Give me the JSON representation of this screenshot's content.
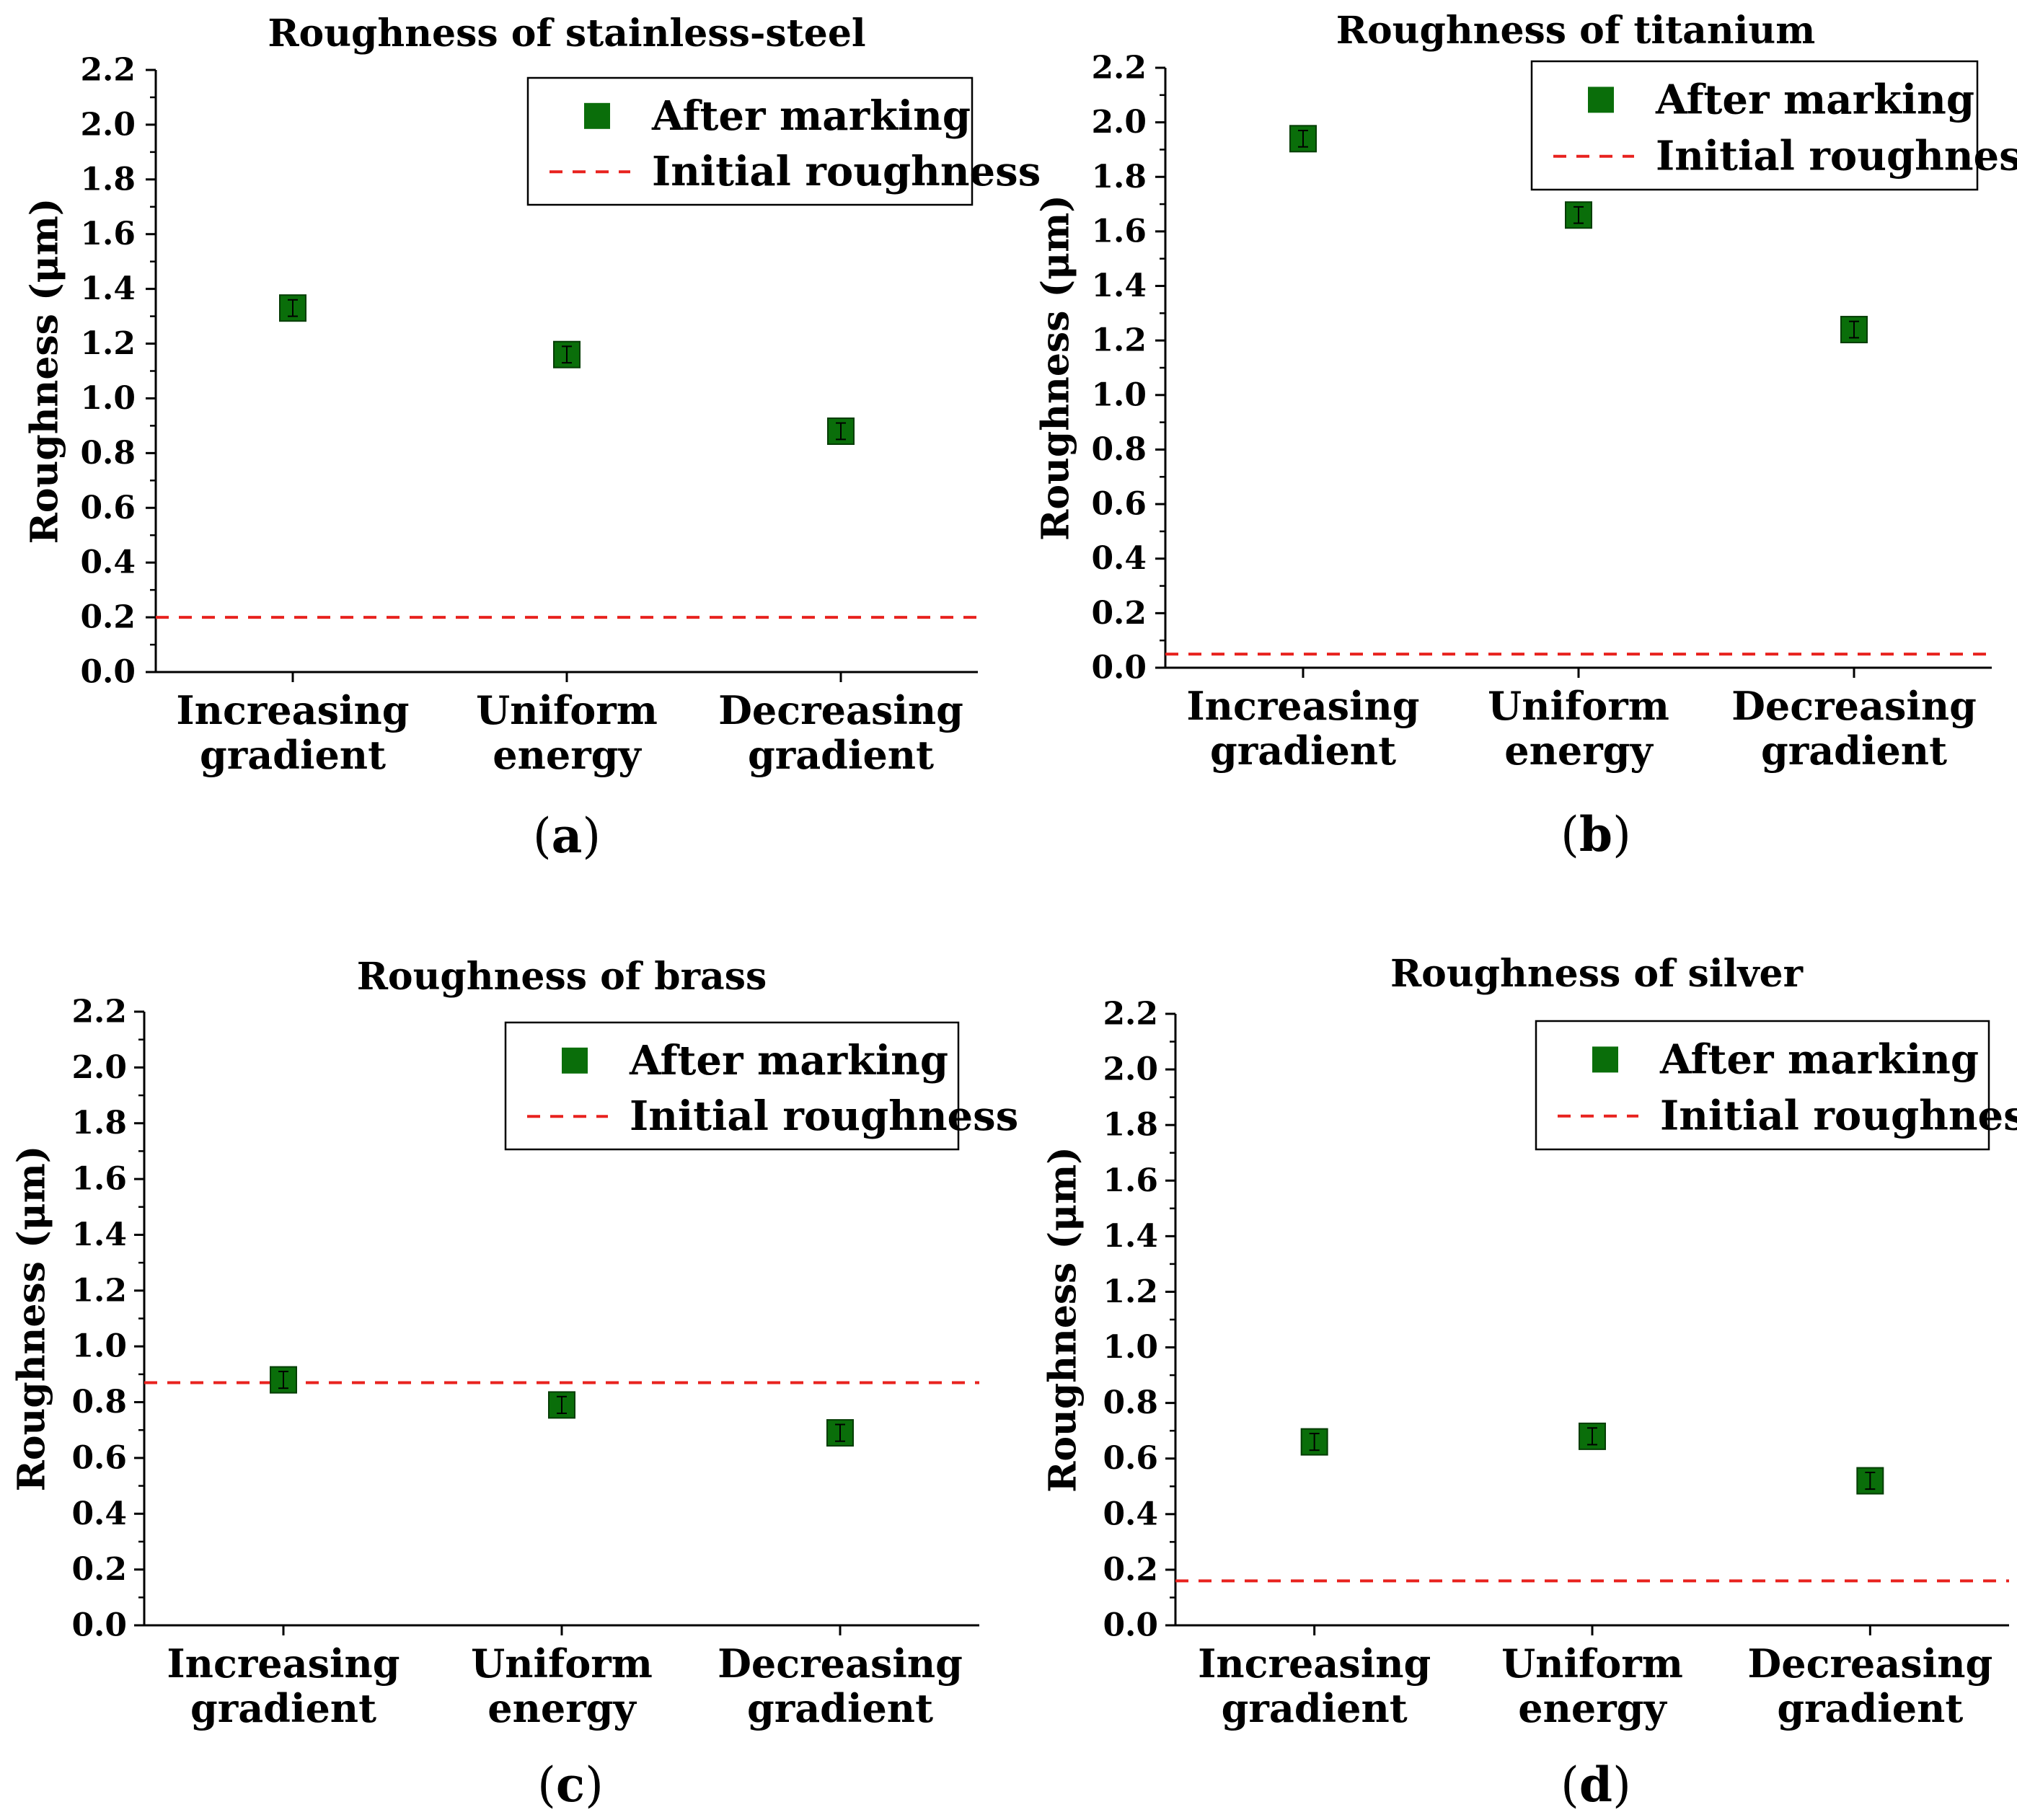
{
  "chart_data": [
    {
      "type": "scatter",
      "panel": "a",
      "title": "Roughness of stainless-steel",
      "ylabel": "Roughness (μm)",
      "xlabel": "",
      "categories": [
        [
          "Increasing",
          "gradient"
        ],
        [
          "Uniform",
          "energy"
        ],
        [
          "Decreasing",
          "gradient"
        ]
      ],
      "ylim": [
        0,
        2.2
      ],
      "yticks": [
        "0.0",
        "0.2",
        "0.4",
        "0.6",
        "0.8",
        "1.0",
        "1.2",
        "1.4",
        "1.6",
        "1.8",
        "2.0",
        "2.2"
      ],
      "series": [
        {
          "name": "After marking",
          "values": [
            1.33,
            1.16,
            0.88
          ],
          "errors": [
            0.03,
            0.03,
            0.03
          ],
          "color": "#0a6e0a"
        }
      ],
      "reference_line": {
        "name": "Initial roughness",
        "value": 0.2,
        "color": "#e8221e"
      },
      "legend_position": "top-right"
    },
    {
      "type": "scatter",
      "panel": "b",
      "title": "Roughness of titanium",
      "ylabel": "Roughness (μm)",
      "xlabel": "",
      "categories": [
        [
          "Increasing",
          "gradient"
        ],
        [
          "Uniform",
          "energy"
        ],
        [
          "Decreasing",
          "gradient"
        ]
      ],
      "ylim": [
        0,
        2.2
      ],
      "yticks": [
        "0.0",
        "0.2",
        "0.4",
        "0.6",
        "0.8",
        "1.0",
        "1.2",
        "1.4",
        "1.6",
        "1.8",
        "2.0",
        "2.2"
      ],
      "series": [
        {
          "name": "After marking",
          "values": [
            1.94,
            1.66,
            1.24
          ],
          "errors": [
            0.03,
            0.03,
            0.03
          ],
          "color": "#0a6e0a"
        }
      ],
      "reference_line": {
        "name": "Initial roughness",
        "value": 0.05,
        "color": "#e8221e"
      },
      "legend_position": "top-right"
    },
    {
      "type": "scatter",
      "panel": "c",
      "title": "Roughness of brass",
      "ylabel": "Roughness (μm)",
      "xlabel": "",
      "categories": [
        [
          "Increasing",
          "gradient"
        ],
        [
          "Uniform",
          "energy"
        ],
        [
          "Decreasing",
          "gradient"
        ]
      ],
      "ylim": [
        0,
        2.2
      ],
      "yticks": [
        "0.0",
        "0.2",
        "0.4",
        "0.6",
        "0.8",
        "1.0",
        "1.2",
        "1.4",
        "1.6",
        "1.8",
        "2.0",
        "2.2"
      ],
      "series": [
        {
          "name": "After marking",
          "values": [
            0.88,
            0.79,
            0.69
          ],
          "errors": [
            0.03,
            0.03,
            0.03
          ],
          "color": "#0a6e0a"
        }
      ],
      "reference_line": {
        "name": "Initial roughness",
        "value": 0.87,
        "color": "#e8221e"
      },
      "legend_position": "top-right"
    },
    {
      "type": "scatter",
      "panel": "d",
      "title": "Roughness of silver",
      "ylabel": "Roughness (μm)",
      "xlabel": "",
      "categories": [
        [
          "Increasing",
          "gradient"
        ],
        [
          "Uniform",
          "energy"
        ],
        [
          "Decreasing",
          "gradient"
        ]
      ],
      "ylim": [
        0,
        2.2
      ],
      "yticks": [
        "0.0",
        "0.2",
        "0.4",
        "0.6",
        "0.8",
        "1.0",
        "1.2",
        "1.4",
        "1.6",
        "1.8",
        "2.0",
        "2.2"
      ],
      "series": [
        {
          "name": "After marking",
          "values": [
            0.66,
            0.68,
            0.52
          ],
          "errors": [
            0.03,
            0.03,
            0.03
          ],
          "color": "#0a6e0a"
        }
      ],
      "reference_line": {
        "name": "Initial roughness",
        "value": 0.16,
        "color": "#e8221e"
      },
      "legend_position": "top-right"
    }
  ]
}
